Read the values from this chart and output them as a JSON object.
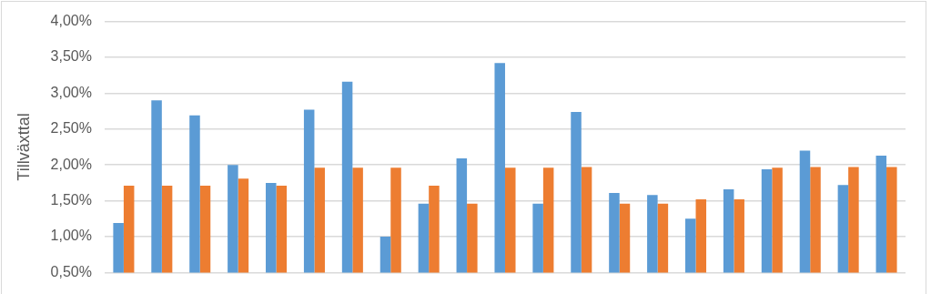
{
  "chart_data": {
    "type": "bar",
    "ylabel": "Tillväxttal",
    "categories": [
      null,
      null,
      null,
      null,
      null,
      null,
      null,
      null,
      null,
      null,
      null,
      null,
      null,
      null,
      null,
      null,
      null,
      null,
      null,
      null,
      null
    ],
    "series": [
      {
        "color": "#5b9bd5",
        "values": [
          1.19,
          2.9,
          2.69,
          2.0,
          1.75,
          2.77,
          3.16,
          1.0,
          1.46,
          2.09,
          3.42,
          1.46,
          2.74,
          1.61,
          1.58,
          1.25,
          1.66,
          1.94,
          2.2,
          1.72,
          2.13
        ]
      },
      {
        "color": "#ed7d31",
        "values": [
          1.71,
          1.71,
          1.71,
          1.81,
          1.71,
          1.96,
          1.96,
          1.96,
          1.71,
          1.46,
          1.96,
          1.96,
          1.97,
          1.46,
          1.46,
          1.52,
          1.52,
          1.96,
          1.97,
          1.97,
          1.97
        ]
      }
    ],
    "ylim": [
      0.5,
      4
    ],
    "yticks": [
      {
        "value": 0.5,
        "label": "0,50%"
      },
      {
        "value": 1,
        "label": "1,00%"
      },
      {
        "value": 1.5,
        "label": "1,50%"
      },
      {
        "value": 2,
        "label": "2,00%"
      },
      {
        "value": 2.5,
        "label": "2,50%"
      },
      {
        "value": 3,
        "label": "3,00%"
      },
      {
        "value": 3.5,
        "label": "3,50%"
      },
      {
        "value": 4,
        "label": "4,00%"
      }
    ],
    "grid": "y",
    "legend": false
  }
}
